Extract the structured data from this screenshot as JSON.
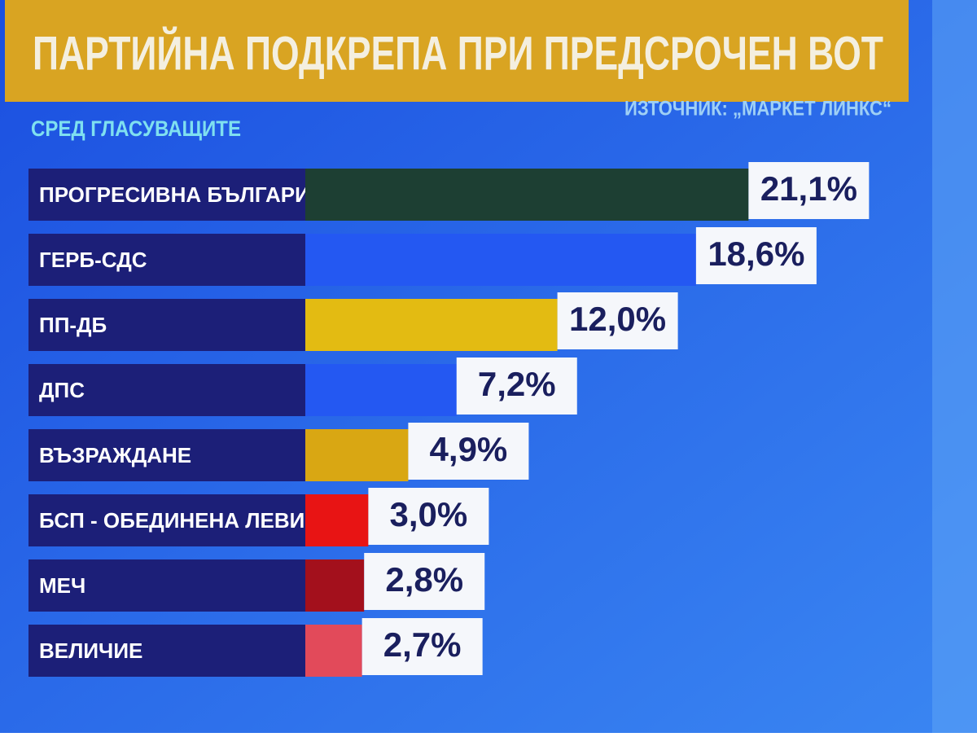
{
  "chart_data": {
    "type": "hbar",
    "title": "ПАРТИЙНА ПОДКРЕПА ПРИ ПРЕДСРОЧЕН ВОТ",
    "subtitle": "СРЕД ГЛАСУВАЩИТЕ",
    "source": "ИЗТОЧНИК: „МАРКЕТ ЛИНКС“",
    "categories": [
      "ПРОГРЕСИВНА БЪЛГАРИЯ",
      "ГЕРБ-СДС",
      "ПП-ДБ",
      "ДПС",
      "ВЪЗРАЖДАНЕ",
      "БСП - ОБЕДИНЕНА ЛЕВИЦА",
      "МЕЧ",
      "ВЕЛИЧИЕ"
    ],
    "values": [
      21.1,
      18.6,
      12.0,
      7.2,
      4.9,
      3.0,
      2.8,
      2.7
    ],
    "value_labels": [
      "21,1%",
      "18,6%",
      "12,0%",
      "7,2%",
      "4,9%",
      "3,0%",
      "2,8%",
      "2,7%"
    ],
    "colors": [
      "#1d3f33",
      "#2458f2",
      "#e3bb12",
      "#2458f2",
      "#d9a713",
      "#e81414",
      "#a3101c",
      "#e24a5a"
    ]
  }
}
